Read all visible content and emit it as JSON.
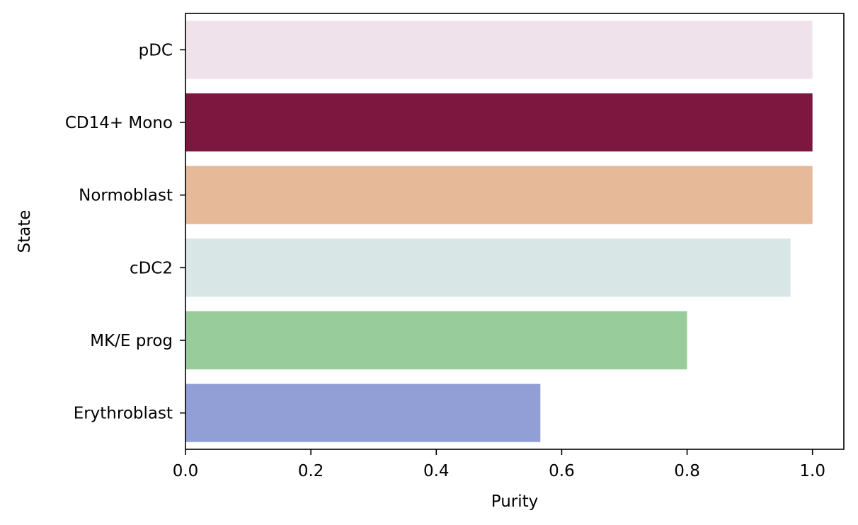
{
  "chart_data": {
    "type": "bar",
    "orientation": "horizontal",
    "title": "",
    "xlabel": "Purity",
    "ylabel": "State",
    "xlim": [
      0,
      1.05
    ],
    "xticks": [
      0.0,
      0.2,
      0.4,
      0.6,
      0.8,
      1.0
    ],
    "xtick_labels": [
      "0.0",
      "0.2",
      "0.4",
      "0.6",
      "0.8",
      "1.0"
    ],
    "grid": false,
    "categories": [
      "pDC",
      "CD14+ Mono",
      "Normoblast",
      "cDC2",
      "MK/E prog",
      "Erythroblast"
    ],
    "values": [
      1.0,
      1.0,
      1.0,
      0.965,
      0.8,
      0.566
    ],
    "colors": [
      "#efe2ea",
      "#7e173f",
      "#e6b998",
      "#d8e6e6",
      "#98cc9a",
      "#929ed6"
    ]
  }
}
